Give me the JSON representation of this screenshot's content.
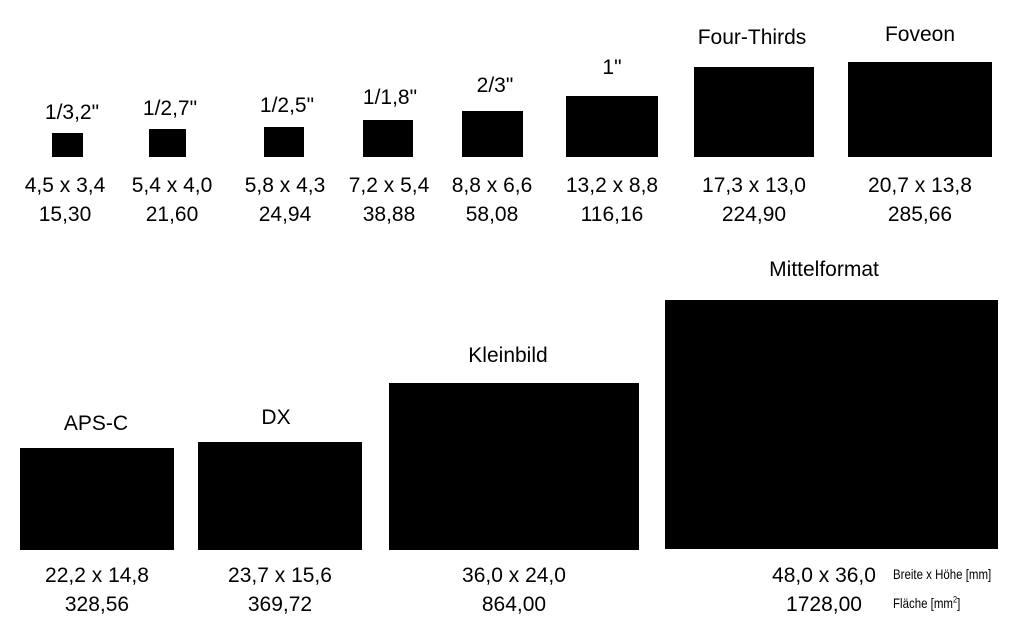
{
  "sensors": [
    {
      "name": "1/3,2\"",
      "dims": "4,5 x 3,4",
      "area": "15,30"
    },
    {
      "name": "1/2,7\"",
      "dims": "5,4 x 4,0",
      "area": "21,60"
    },
    {
      "name": "1/2,5\"",
      "dims": "5,8 x 4,3",
      "area": "24,94"
    },
    {
      "name": "1/1,8\"",
      "dims": "7,2 x 5,4",
      "area": "38,88"
    },
    {
      "name": "2/3\"",
      "dims": "8,8 x 6,6",
      "area": "58,08"
    },
    {
      "name": "1\"",
      "dims": "13,2 x 8,8",
      "area": "116,16"
    },
    {
      "name": "Four-Thirds",
      "dims": "17,3 x 13,0",
      "area": "224,90"
    },
    {
      "name": "Foveon",
      "dims": "20,7 x 13,8",
      "area": "285,66"
    },
    {
      "name": "APS-C",
      "dims": "22,2 x 14,8",
      "area": "328,56"
    },
    {
      "name": "DX",
      "dims": "23,7 x 15,6",
      "area": "369,72"
    },
    {
      "name": "Kleinbild",
      "dims": "36,0 x 24,0",
      "area": "864,00"
    },
    {
      "name": "Mittelformat",
      "dims": "48,0 x 36,0",
      "area": "1728,00"
    }
  ],
  "legend": {
    "dims_label": "Breite x Höhe [mm]",
    "area_label_prefix": "Fläche [mm",
    "area_label_sup": "2",
    "area_label_suffix": "]"
  },
  "colors": {
    "sensor_fill": "#000000",
    "background": "#ffffff"
  }
}
